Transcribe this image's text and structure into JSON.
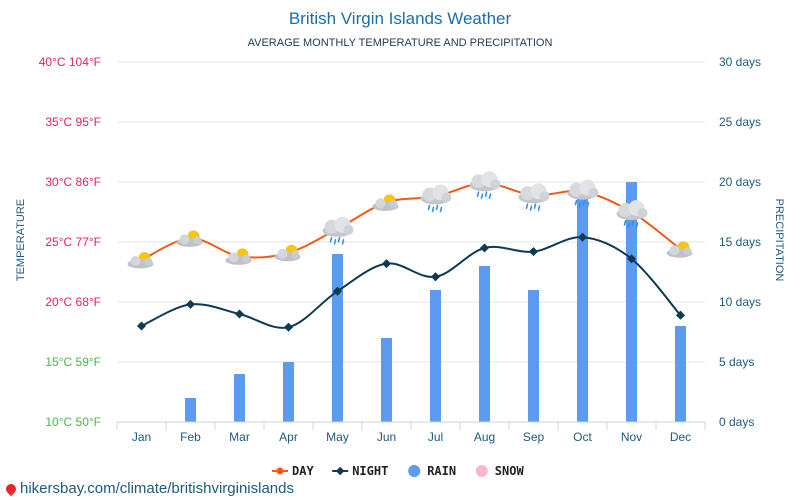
{
  "chart_data": {
    "type": "line+bar",
    "title": "British Virgin Islands Weather",
    "subtitle": "AVERAGE MONTHLY TEMPERATURE AND PRECIPITATION",
    "ylabel_left": "TEMPERATURE",
    "ylabel_right": "PRECIPITATION",
    "categories": [
      "Jan",
      "Feb",
      "Mar",
      "Apr",
      "May",
      "Jun",
      "Jul",
      "Aug",
      "Sep",
      "Oct",
      "Nov",
      "Dec"
    ],
    "y_left_ticks": [
      {
        "value": 40,
        "label": "40°C 104°F",
        "color": "#e0245e"
      },
      {
        "value": 35,
        "label": "35°C 95°F",
        "color": "#e0245e"
      },
      {
        "value": 30,
        "label": "30°C 86°F",
        "color": "#e0245e"
      },
      {
        "value": 25,
        "label": "25°C 77°F",
        "color": "#e0245e"
      },
      {
        "value": 20,
        "label": "20°C 68°F",
        "color": "#e0245e"
      },
      {
        "value": 15,
        "label": "15°C 59°F",
        "color": "#46b946"
      },
      {
        "value": 10,
        "label": "10°C 50°F",
        "color": "#46b946"
      }
    ],
    "y_right_ticks": [
      {
        "value": 30,
        "label": "30 days"
      },
      {
        "value": 25,
        "label": "25 days"
      },
      {
        "value": 20,
        "label": "20 days"
      },
      {
        "value": 15,
        "label": "15 days"
      },
      {
        "value": 10,
        "label": "10 days"
      },
      {
        "value": 5,
        "label": "5 days"
      },
      {
        "value": 0,
        "label": "0 days"
      }
    ],
    "ylim_left": [
      10,
      40
    ],
    "ylim_right": [
      0,
      30
    ],
    "grid": true,
    "legend_position": "bottom",
    "series": [
      {
        "name": "DAY",
        "type": "line",
        "color": "#f05a1a",
        "values": [
          23.5,
          25.3,
          23.8,
          24.1,
          26.1,
          28.3,
          28.8,
          29.9,
          28.9,
          29.2,
          27.5,
          24.4
        ]
      },
      {
        "name": "NIGHT",
        "type": "line",
        "color": "#0e3a52",
        "values": [
          18.0,
          19.8,
          19.0,
          17.9,
          20.9,
          23.2,
          22.1,
          24.5,
          24.2,
          25.4,
          23.6,
          18.9
        ]
      },
      {
        "name": "RAIN",
        "type": "bar",
        "color": "#5b9bf0",
        "values": [
          0,
          2,
          4,
          5,
          14,
          7,
          11,
          13,
          11,
          19,
          20,
          8
        ]
      },
      {
        "name": "SNOW",
        "type": "bar",
        "color": "#ffb6c8",
        "values": [
          0,
          0,
          0,
          0,
          0,
          0,
          0,
          0,
          0,
          0,
          0,
          0
        ]
      }
    ],
    "weather_icons": [
      "sun-cloud",
      "sun-cloud",
      "sun-cloud",
      "sun-cloud",
      "rain-cloud",
      "sun-cloud",
      "rain-cloud",
      "rain-cloud",
      "rain-cloud",
      "rain-cloud",
      "rain-cloud",
      "sun-cloud"
    ],
    "colors": {
      "title": "#1a6fa8",
      "axis_text": "#1e5a7c",
      "grid": "#e6e6e6"
    }
  },
  "watermark": "hikersbay.com/climate/britishvirginislands"
}
